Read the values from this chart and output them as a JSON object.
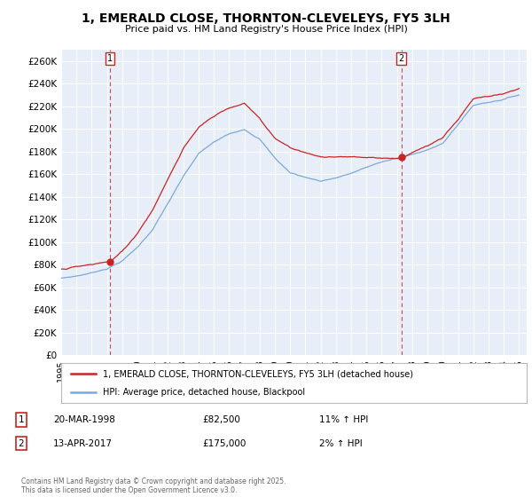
{
  "title_line1": "1, EMERALD CLOSE, THORNTON-CLEVELEYS, FY5 3LH",
  "title_line2": "Price paid vs. HM Land Registry's House Price Index (HPI)",
  "ylim": [
    0,
    270000
  ],
  "yticks": [
    0,
    20000,
    40000,
    60000,
    80000,
    100000,
    120000,
    140000,
    160000,
    180000,
    200000,
    220000,
    240000,
    260000
  ],
  "ytick_labels": [
    "£0",
    "£20K",
    "£40K",
    "£60K",
    "£80K",
    "£100K",
    "£120K",
    "£140K",
    "£160K",
    "£180K",
    "£200K",
    "£220K",
    "£240K",
    "£260K"
  ],
  "sale1_date": "20-MAR-1998",
  "sale1_price": "82,500",
  "sale1_hpi": "11% ↑ HPI",
  "sale2_date": "13-APR-2017",
  "sale2_price": "175,000",
  "sale2_hpi": "2% ↑ HPI",
  "legend1": "1, EMERALD CLOSE, THORNTON-CLEVELEYS, FY5 3LH (detached house)",
  "legend2": "HPI: Average price, detached house, Blackpool",
  "footer": "Contains HM Land Registry data © Crown copyright and database right 2025.\nThis data is licensed under the Open Government Licence v3.0.",
  "property_color": "#cc2222",
  "hpi_color": "#7aaadd",
  "plot_bg_color": "#e8eef8",
  "grid_color": "#ffffff",
  "sale1_x": 1998.21,
  "sale1_y": 82500,
  "sale2_x": 2017.29,
  "sale2_y": 175000,
  "xmin": 1995,
  "xmax": 2025.5
}
